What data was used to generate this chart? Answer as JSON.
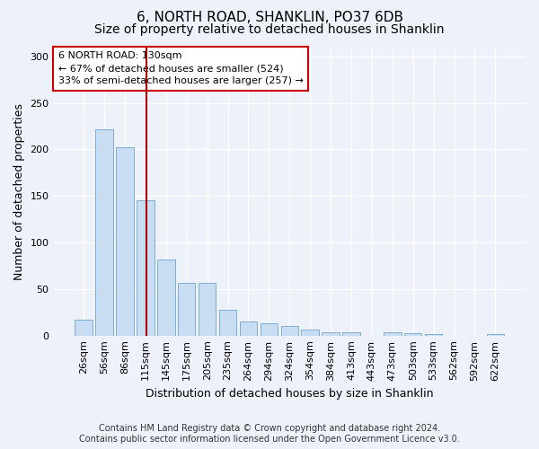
{
  "title": "6, NORTH ROAD, SHANKLIN, PO37 6DB",
  "subtitle": "Size of property relative to detached houses in Shanklin",
  "xlabel": "Distribution of detached houses by size in Shanklin",
  "ylabel": "Number of detached properties",
  "footer_line1": "Contains HM Land Registry data © Crown copyright and database right 2024.",
  "footer_line2": "Contains public sector information licensed under the Open Government Licence v3.0.",
  "bin_labels": [
    "26sqm",
    "56sqm",
    "86sqm",
    "115sqm",
    "145sqm",
    "175sqm",
    "205sqm",
    "235sqm",
    "264sqm",
    "294sqm",
    "324sqm",
    "354sqm",
    "384sqm",
    "413sqm",
    "443sqm",
    "473sqm",
    "503sqm",
    "533sqm",
    "562sqm",
    "592sqm",
    "622sqm"
  ],
  "bar_values": [
    17,
    222,
    202,
    145,
    82,
    57,
    57,
    28,
    15,
    13,
    10,
    6,
    4,
    4,
    0,
    4,
    3,
    2,
    0,
    0,
    2
  ],
  "bar_color": "#c9ddf2",
  "bar_edgecolor": "#7fadd4",
  "vline_color": "#aa0000",
  "annotation_text": "6 NORTH ROAD: 130sqm\n← 67% of detached houses are smaller (524)\n33% of semi-detached houses are larger (257) →",
  "annotation_box_edgecolor": "#cc0000",
  "annotation_box_facecolor": "#ffffff",
  "ylim": [
    0,
    310
  ],
  "yticks": [
    0,
    50,
    100,
    150,
    200,
    250,
    300
  ],
  "background_color": "#edf2fa",
  "grid_color": "#ffffff",
  "title_fontsize": 11,
  "subtitle_fontsize": 10,
  "axis_label_fontsize": 9,
  "tick_fontsize": 8,
  "annotation_fontsize": 8,
  "footer_fontsize": 7
}
